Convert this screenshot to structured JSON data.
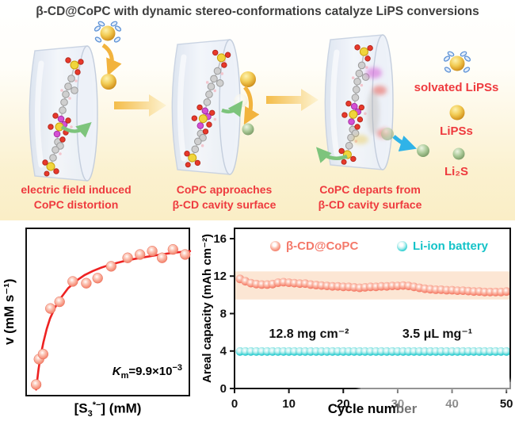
{
  "title": "β-CD@CoPC with dynamic stereo-conformations catalyze LiPS conversions",
  "mechanism": {
    "label_color": "#ee3a3e",
    "step_labels": [
      [
        "electric field induced",
        "CoPC distortion"
      ],
      [
        "CoPC approaches",
        "β-CD cavity surface"
      ],
      [
        "CoPC departs from",
        "β-CD cavity surface"
      ]
    ],
    "legend": [
      {
        "icon": "solvated-lips-icon",
        "label": "solvated LiPSs"
      },
      {
        "icon": "lips-icon",
        "label": "LiPSs"
      },
      {
        "icon": "li2s-icon",
        "label": "Li₂S"
      }
    ],
    "colors": {
      "lips_gold": "#e6b33c",
      "li2s_green": "#9cbe8c",
      "process_arrow_yellow": "#f4bd4b"
    }
  },
  "chart_data": [
    {
      "type": "scatter",
      "name": "polysulfide-conversion-kinetics",
      "ylabel": "v (mM s⁻¹)",
      "xlabel_parts": {
        "pre": "[S",
        "sub": "3",
        "sup": "*−",
        "post": "] (mM)"
      },
      "annotation_parts": {
        "k": "K",
        "k_sub": "m",
        "body": "=9.9×10",
        "exp": "−3"
      },
      "axis_numeric_labels": false,
      "grid": false,
      "curve_color": "#ee2222",
      "point_color": "#f4826e",
      "points_rel": [
        [
          0.056,
          0.08
        ],
        [
          0.073,
          0.23
        ],
        [
          0.098,
          0.26
        ],
        [
          0.143,
          0.53
        ],
        [
          0.198,
          0.57
        ],
        [
          0.278,
          0.69
        ],
        [
          0.36,
          0.68
        ],
        [
          0.429,
          0.71
        ],
        [
          0.511,
          0.78
        ],
        [
          0.611,
          0.83
        ],
        [
          0.686,
          0.85
        ],
        [
          0.76,
          0.87
        ],
        [
          0.82,
          0.83
        ],
        [
          0.886,
          0.88
        ],
        [
          0.96,
          0.85
        ]
      ],
      "fit_curve_rel": [
        [
          0.056,
          0.05
        ],
        [
          0.07,
          0.17
        ],
        [
          0.085,
          0.26
        ],
        [
          0.1,
          0.33
        ],
        [
          0.12,
          0.41
        ],
        [
          0.14,
          0.47
        ],
        [
          0.17,
          0.535
        ],
        [
          0.2,
          0.585
        ],
        [
          0.25,
          0.65
        ],
        [
          0.3,
          0.695
        ],
        [
          0.35,
          0.728
        ],
        [
          0.4,
          0.752
        ],
        [
          0.45,
          0.772
        ],
        [
          0.5,
          0.788
        ],
        [
          0.55,
          0.801
        ],
        [
          0.6,
          0.813
        ],
        [
          0.65,
          0.823
        ],
        [
          0.7,
          0.832
        ],
        [
          0.75,
          0.84
        ],
        [
          0.8,
          0.848
        ],
        [
          0.85,
          0.855
        ],
        [
          0.9,
          0.861
        ],
        [
          0.95,
          0.866
        ],
        [
          0.99,
          0.87
        ]
      ]
    },
    {
      "type": "scatter",
      "name": "cycling-performance",
      "xlabel": "Cycle number",
      "ylabel": "Areal capacity (mAh cm⁻²)",
      "xlim": [
        0,
        50.7
      ],
      "ylim": [
        0,
        17.1
      ],
      "xticks": [
        0,
        10,
        20,
        30,
        40,
        50
      ],
      "yticks": [
        0,
        4,
        8,
        12,
        16
      ],
      "grid": false,
      "legend_position": "top-inside",
      "band": {
        "ymin": 9.5,
        "ymax": 12.5,
        "color": "#fbe2cd"
      },
      "series": [
        {
          "name": "β-CD@CoPC",
          "color": "#f4796a",
          "x_start": 1,
          "y": [
            11.7,
            11.45,
            11.25,
            11.15,
            11.1,
            11.1,
            11.15,
            11.3,
            11.35,
            11.3,
            11.25,
            11.2,
            11.2,
            11.1,
            11.05,
            11.0,
            10.95,
            10.9,
            10.9,
            10.85,
            10.85,
            10.8,
            10.75,
            10.8,
            10.85,
            10.85,
            10.9,
            10.9,
            10.95,
            10.95,
            11.0,
            10.95,
            10.85,
            10.75,
            10.65,
            10.6,
            10.55,
            10.55,
            10.5,
            10.5,
            10.45,
            10.45,
            10.4,
            10.35,
            10.35,
            10.3,
            10.3,
            10.3,
            10.3,
            10.35
          ]
        },
        {
          "name": "Li-ion battery",
          "color": "#14c3c8",
          "x_start": 1,
          "constant_y": 3.95,
          "count": 50
        }
      ],
      "annotations": [
        {
          "text": "12.8 mg cm⁻²"
        },
        {
          "text": "3.5 μL mg⁻¹"
        }
      ]
    }
  ]
}
